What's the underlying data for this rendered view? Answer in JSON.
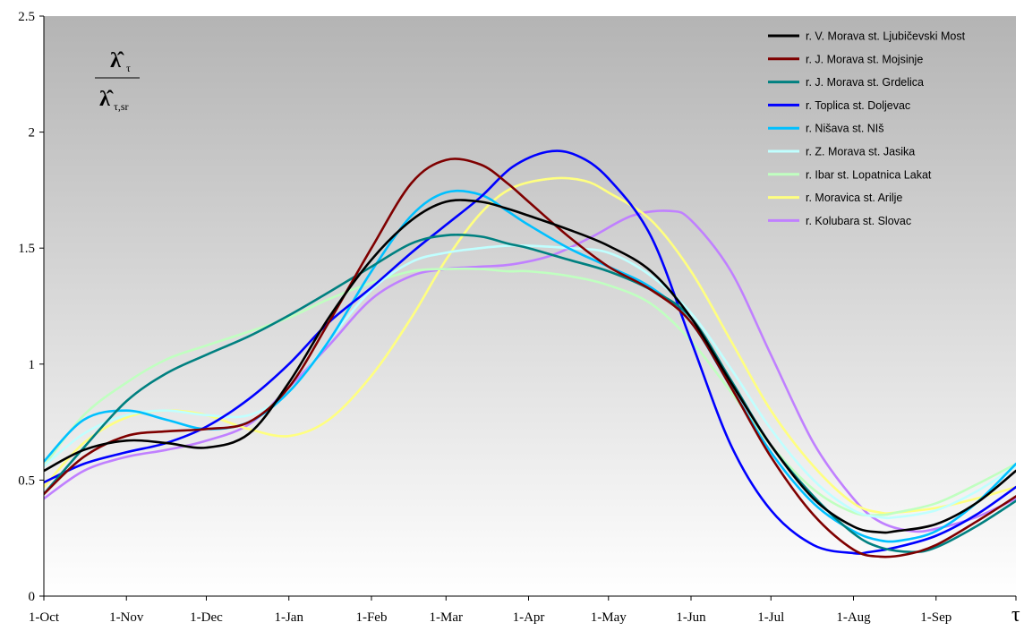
{
  "chart_data": {
    "type": "line",
    "title": "",
    "xlabel": "τ",
    "ylabel": {
      "numerator": "λ̂",
      "numerator_sub": "τ",
      "denominator": "λ̂",
      "denominator_sub": "τ,sr"
    },
    "categories": [
      "1-Oct",
      "1-Nov",
      "1-Dec",
      "1-Jan",
      "1-Feb",
      "1-Mar",
      "1-Apr",
      "1-May",
      "1-Jun",
      "1-Jul",
      "1-Aug",
      "1-Sep"
    ],
    "xlim": [
      "1-Oct",
      "30-Sep"
    ],
    "ylim": [
      0,
      2.5
    ],
    "yticks": [
      0,
      0.5,
      1,
      1.5,
      2,
      2.5
    ],
    "ytick_labels": [
      "0",
      "0.5",
      "1",
      "1.5",
      "2",
      "2.5"
    ],
    "grid": false,
    "legend_position": "top-right",
    "background": "vertical gradient grey to white",
    "x_unit_note": "x values are days since 1-Oct",
    "series": [
      {
        "name": "r. V. Morava st. Ljubičevski Most",
        "color": "#000000",
        "x": [
          0,
          15,
          31,
          46,
          61,
          77,
          92,
          107,
          123,
          138,
          151,
          164,
          174,
          182,
          197,
          212,
          228,
          243,
          258,
          273,
          289,
          304,
          314,
          320,
          335,
          350,
          365
        ],
        "values": [
          0.54,
          0.63,
          0.67,
          0.66,
          0.64,
          0.7,
          0.92,
          1.2,
          1.45,
          1.62,
          1.7,
          1.7,
          1.67,
          1.64,
          1.58,
          1.51,
          1.4,
          1.2,
          0.92,
          0.65,
          0.42,
          0.3,
          0.275,
          0.28,
          0.31,
          0.4,
          0.54
        ]
      },
      {
        "name": "r. J. Morava st. Mojsinje",
        "color": "#7f0000",
        "x": [
          0,
          15,
          31,
          46,
          61,
          77,
          92,
          107,
          123,
          138,
          151,
          164,
          174,
          182,
          197,
          212,
          228,
          243,
          258,
          273,
          289,
          304,
          314,
          324,
          335,
          350,
          365
        ],
        "values": [
          0.44,
          0.6,
          0.69,
          0.71,
          0.72,
          0.75,
          0.9,
          1.18,
          1.5,
          1.78,
          1.88,
          1.86,
          1.78,
          1.7,
          1.55,
          1.42,
          1.32,
          1.18,
          0.9,
          0.6,
          0.35,
          0.2,
          0.17,
          0.18,
          0.22,
          0.32,
          0.43
        ]
      },
      {
        "name": "r. J. Morava st. Grdelica",
        "color": "#008080",
        "x": [
          0,
          15,
          31,
          46,
          61,
          77,
          92,
          107,
          123,
          138,
          151,
          164,
          174,
          182,
          197,
          212,
          228,
          243,
          258,
          273,
          289,
          304,
          314,
          326,
          335,
          350,
          365
        ],
        "values": [
          0.44,
          0.64,
          0.84,
          0.96,
          1.04,
          1.12,
          1.21,
          1.31,
          1.42,
          1.52,
          1.555,
          1.55,
          1.52,
          1.5,
          1.45,
          1.4,
          1.32,
          1.2,
          0.93,
          0.65,
          0.43,
          0.27,
          0.21,
          0.19,
          0.21,
          0.3,
          0.41
        ]
      },
      {
        "name": "r. Toplica st. Doljevac",
        "color": "#0000ff",
        "x": [
          0,
          15,
          31,
          46,
          61,
          77,
          92,
          107,
          123,
          138,
          151,
          164,
          176,
          189,
          200,
          212,
          228,
          243,
          258,
          273,
          289,
          304,
          310,
          320,
          335,
          350,
          365
        ],
        "values": [
          0.49,
          0.57,
          0.62,
          0.66,
          0.73,
          0.85,
          1.0,
          1.18,
          1.33,
          1.48,
          1.6,
          1.72,
          1.85,
          1.915,
          1.9,
          1.8,
          1.55,
          1.1,
          0.65,
          0.37,
          0.22,
          0.185,
          0.19,
          0.21,
          0.26,
          0.35,
          0.47
        ]
      },
      {
        "name": "r. Nišava st. NIš",
        "color": "#00c0ff",
        "x": [
          0,
          15,
          31,
          46,
          61,
          77,
          92,
          107,
          123,
          138,
          151,
          164,
          174,
          182,
          197,
          212,
          228,
          243,
          258,
          273,
          289,
          304,
          314,
          322,
          335,
          350,
          365
        ],
        "values": [
          0.58,
          0.76,
          0.8,
          0.76,
          0.72,
          0.75,
          0.88,
          1.1,
          1.4,
          1.64,
          1.74,
          1.73,
          1.66,
          1.6,
          1.5,
          1.42,
          1.33,
          1.18,
          0.9,
          0.62,
          0.4,
          0.28,
          0.24,
          0.24,
          0.28,
          0.4,
          0.57
        ]
      },
      {
        "name": "r. Z. Morava st. Jasika",
        "color": "#c0ffff",
        "x": [
          0,
          15,
          31,
          46,
          61,
          77,
          92,
          107,
          123,
          138,
          151,
          164,
          174,
          182,
          197,
          212,
          228,
          243,
          258,
          273,
          289,
          304,
          314,
          320,
          335,
          350,
          365
        ],
        "values": [
          0.56,
          0.7,
          0.78,
          0.8,
          0.78,
          0.78,
          0.88,
          1.1,
          1.32,
          1.44,
          1.48,
          1.5,
          1.51,
          1.51,
          1.5,
          1.48,
          1.38,
          1.22,
          0.98,
          0.72,
          0.5,
          0.37,
          0.34,
          0.34,
          0.37,
          0.45,
          0.56
        ]
      },
      {
        "name": "r. Ibar st. Lopatnica Lakat",
        "color": "#c0ffc0",
        "x": [
          0,
          15,
          31,
          46,
          61,
          77,
          92,
          107,
          123,
          138,
          151,
          164,
          174,
          182,
          197,
          212,
          228,
          243,
          258,
          273,
          289,
          304,
          314,
          320,
          335,
          350,
          365
        ],
        "values": [
          0.56,
          0.78,
          0.92,
          1.02,
          1.08,
          1.14,
          1.2,
          1.28,
          1.35,
          1.4,
          1.41,
          1.41,
          1.4,
          1.4,
          1.38,
          1.34,
          1.26,
          1.1,
          0.88,
          0.65,
          0.46,
          0.36,
          0.35,
          0.36,
          0.4,
          0.48,
          0.57
        ]
      },
      {
        "name": "r. Moravica st. Arilje",
        "color": "#ffff80",
        "x": [
          0,
          15,
          31,
          46,
          61,
          77,
          92,
          107,
          123,
          138,
          151,
          164,
          176,
          191,
          203,
          212,
          228,
          243,
          258,
          273,
          289,
          304,
          314,
          320,
          335,
          350,
          365
        ],
        "values": [
          0.47,
          0.66,
          0.77,
          0.8,
          0.78,
          0.72,
          0.69,
          0.76,
          0.95,
          1.2,
          1.45,
          1.65,
          1.76,
          1.8,
          1.79,
          1.74,
          1.62,
          1.4,
          1.1,
          0.8,
          0.56,
          0.4,
          0.36,
          0.36,
          0.38,
          0.42,
          0.47
        ]
      },
      {
        "name": "r. Kolubara st. Slovac",
        "color": "#c080ff",
        "x": [
          0,
          15,
          31,
          46,
          61,
          77,
          92,
          107,
          123,
          138,
          151,
          164,
          176,
          191,
          206,
          221,
          235,
          243,
          258,
          273,
          289,
          304,
          314,
          326,
          335,
          350,
          365
        ],
        "values": [
          0.42,
          0.54,
          0.6,
          0.63,
          0.67,
          0.74,
          0.9,
          1.08,
          1.28,
          1.38,
          1.41,
          1.42,
          1.43,
          1.47,
          1.55,
          1.64,
          1.66,
          1.62,
          1.4,
          1.04,
          0.66,
          0.42,
          0.32,
          0.28,
          0.29,
          0.34,
          0.42
        ]
      }
    ]
  }
}
